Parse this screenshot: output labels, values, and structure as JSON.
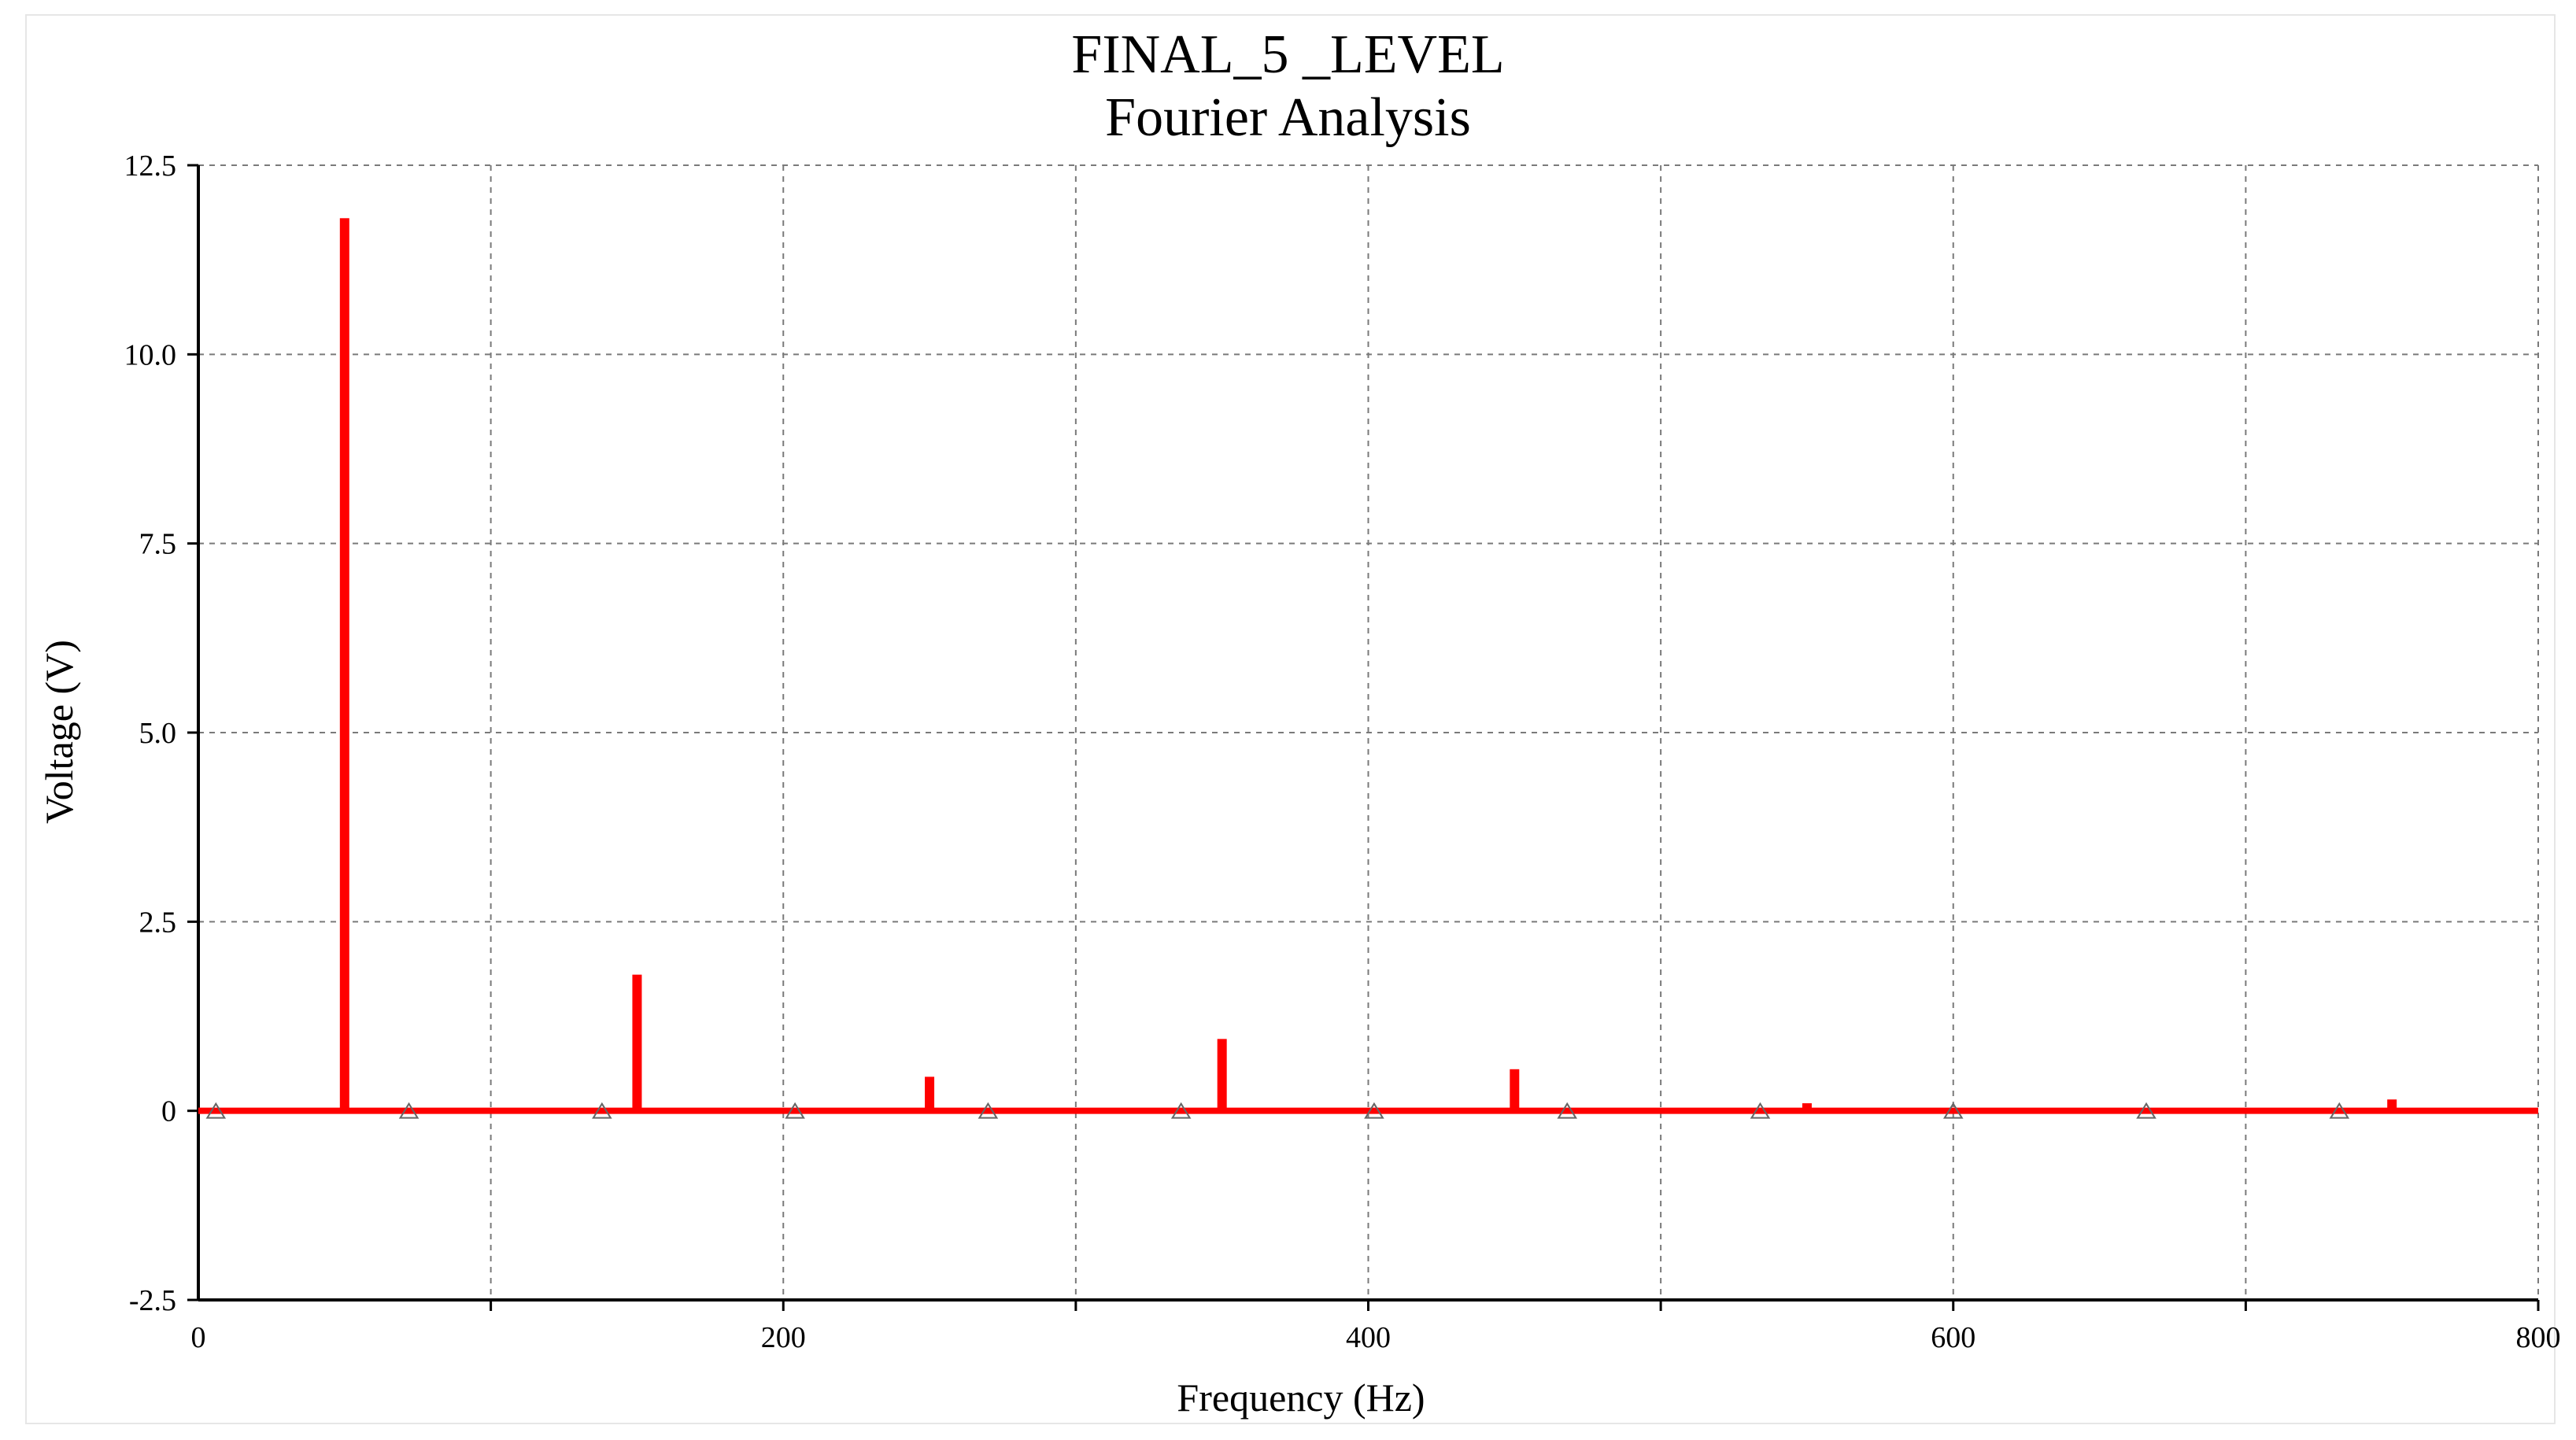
{
  "chart_data": {
    "type": "bar",
    "title": "FINAL_5 _LEVEL",
    "subtitle": "Fourier Analysis",
    "xlabel": "Frequency (Hz)",
    "ylabel": "Voltage (V)",
    "xlim": [
      0,
      800
    ],
    "ylim": [
      -2.5,
      12.5
    ],
    "x_ticks": [
      0,
      200,
      400,
      600,
      800
    ],
    "y_ticks": [
      -2.5,
      0,
      2.5,
      5.0,
      7.5,
      10.0,
      12.5
    ],
    "y_tick_labels": [
      "-2.5",
      "0",
      "2.5",
      "5.0",
      "7.5",
      "10.0",
      "12.5"
    ],
    "grid": true,
    "series_color": "#ff0000",
    "x": [
      50,
      150,
      250,
      350,
      450,
      550,
      750
    ],
    "values": [
      11.8,
      1.8,
      0.45,
      0.95,
      0.55,
      0.1,
      0.15
    ],
    "baseline_markers_x": [
      6,
      72,
      138,
      204,
      270,
      336,
      402,
      468,
      534,
      600,
      666,
      732
    ]
  }
}
